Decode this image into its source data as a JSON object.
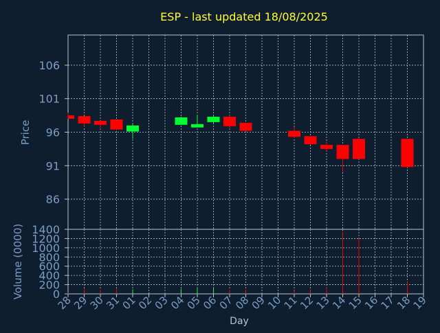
{
  "chart_data": [
    {
      "type": "candlestick",
      "title": "ESP - last updated 18/08/2025",
      "ylabel": "Price",
      "xlabel": "",
      "ylim": [
        81.5,
        110.5
      ],
      "yticks": [
        86,
        91,
        96,
        101,
        106
      ],
      "grid": true,
      "candles": [
        {
          "day": "28",
          "open": 98.5,
          "high": 98.9,
          "low": 98.0,
          "close": 98.0
        },
        {
          "day": "29",
          "open": 98.4,
          "high": 98.4,
          "low": 96.8,
          "close": 97.3
        },
        {
          "day": "30",
          "open": 97.7,
          "high": 97.7,
          "low": 96.5,
          "close": 97.1
        },
        {
          "day": "31",
          "open": 97.9,
          "high": 97.9,
          "low": 96.3,
          "close": 96.4
        },
        {
          "day": "01",
          "open": 96.1,
          "high": 97.2,
          "low": 95.0,
          "close": 97.0
        },
        {
          "day": "04",
          "open": 97.1,
          "high": 98.3,
          "low": 97.1,
          "close": 98.2
        },
        {
          "day": "05",
          "open": 96.7,
          "high": 98.6,
          "low": 96.7,
          "close": 97.2
        },
        {
          "day": "06",
          "open": 97.5,
          "high": 98.5,
          "low": 97.4,
          "close": 98.3
        },
        {
          "day": "07",
          "open": 98.3,
          "high": 98.5,
          "low": 96.5,
          "close": 96.9
        },
        {
          "day": "08",
          "open": 97.4,
          "high": 97.4,
          "low": 96.1,
          "close": 96.2
        },
        {
          "day": "11",
          "open": 96.2,
          "high": 96.8,
          "low": 95.1,
          "close": 95.3
        },
        {
          "day": "12",
          "open": 95.4,
          "high": 95.4,
          "low": 94.1,
          "close": 94.2
        },
        {
          "day": "13",
          "open": 94.1,
          "high": 94.6,
          "low": 93.2,
          "close": 93.5
        },
        {
          "day": "14",
          "open": 94.1,
          "high": 94.1,
          "low": 90.0,
          "close": 92.0
        },
        {
          "day": "15",
          "open": 95.0,
          "high": 95.1,
          "low": 92.0,
          "close": 92.0
        },
        {
          "day": "18",
          "open": 95.0,
          "high": 95.0,
          "low": 90.7,
          "close": 90.8
        }
      ],
      "colors": {
        "up": "#00ff33",
        "down": "#ff0000",
        "title": "#ffff33",
        "axis_text": "#7a9cc6",
        "grid": "#b8c4d0",
        "background": "#0f1e2e"
      }
    },
    {
      "type": "bar",
      "ylabel": "Volume (0000)",
      "xlabel": "Day",
      "ylim": [
        0,
        1400
      ],
      "yticks": [
        0,
        200,
        400,
        600,
        800,
        1000,
        1200,
        1400
      ],
      "grid": true,
      "categories": [
        "28",
        "29",
        "30",
        "31",
        "01",
        "02",
        "03",
        "04",
        "05",
        "06",
        "07",
        "08",
        "09",
        "10",
        "11",
        "12",
        "13",
        "14",
        "15",
        "16",
        "17",
        "18",
        "19"
      ],
      "volumes": [
        {
          "day": "28",
          "value": 20,
          "direction": "down"
        },
        {
          "day": "29",
          "value": 120,
          "direction": "down"
        },
        {
          "day": "30",
          "value": 90,
          "direction": "down"
        },
        {
          "day": "31",
          "value": 110,
          "direction": "down"
        },
        {
          "day": "01",
          "value": 100,
          "direction": "up"
        },
        {
          "day": "04",
          "value": 110,
          "direction": "up"
        },
        {
          "day": "05",
          "value": 130,
          "direction": "up"
        },
        {
          "day": "06",
          "value": 120,
          "direction": "up"
        },
        {
          "day": "07",
          "value": 90,
          "direction": "down"
        },
        {
          "day": "08",
          "value": 100,
          "direction": "down"
        },
        {
          "day": "11",
          "value": 70,
          "direction": "down"
        },
        {
          "day": "12",
          "value": 80,
          "direction": "down"
        },
        {
          "day": "13",
          "value": 140,
          "direction": "down"
        },
        {
          "day": "14",
          "value": 1350,
          "direction": "down"
        },
        {
          "day": "15",
          "value": 1200,
          "direction": "down"
        },
        {
          "day": "18",
          "value": 260,
          "direction": "down"
        }
      ]
    }
  ]
}
